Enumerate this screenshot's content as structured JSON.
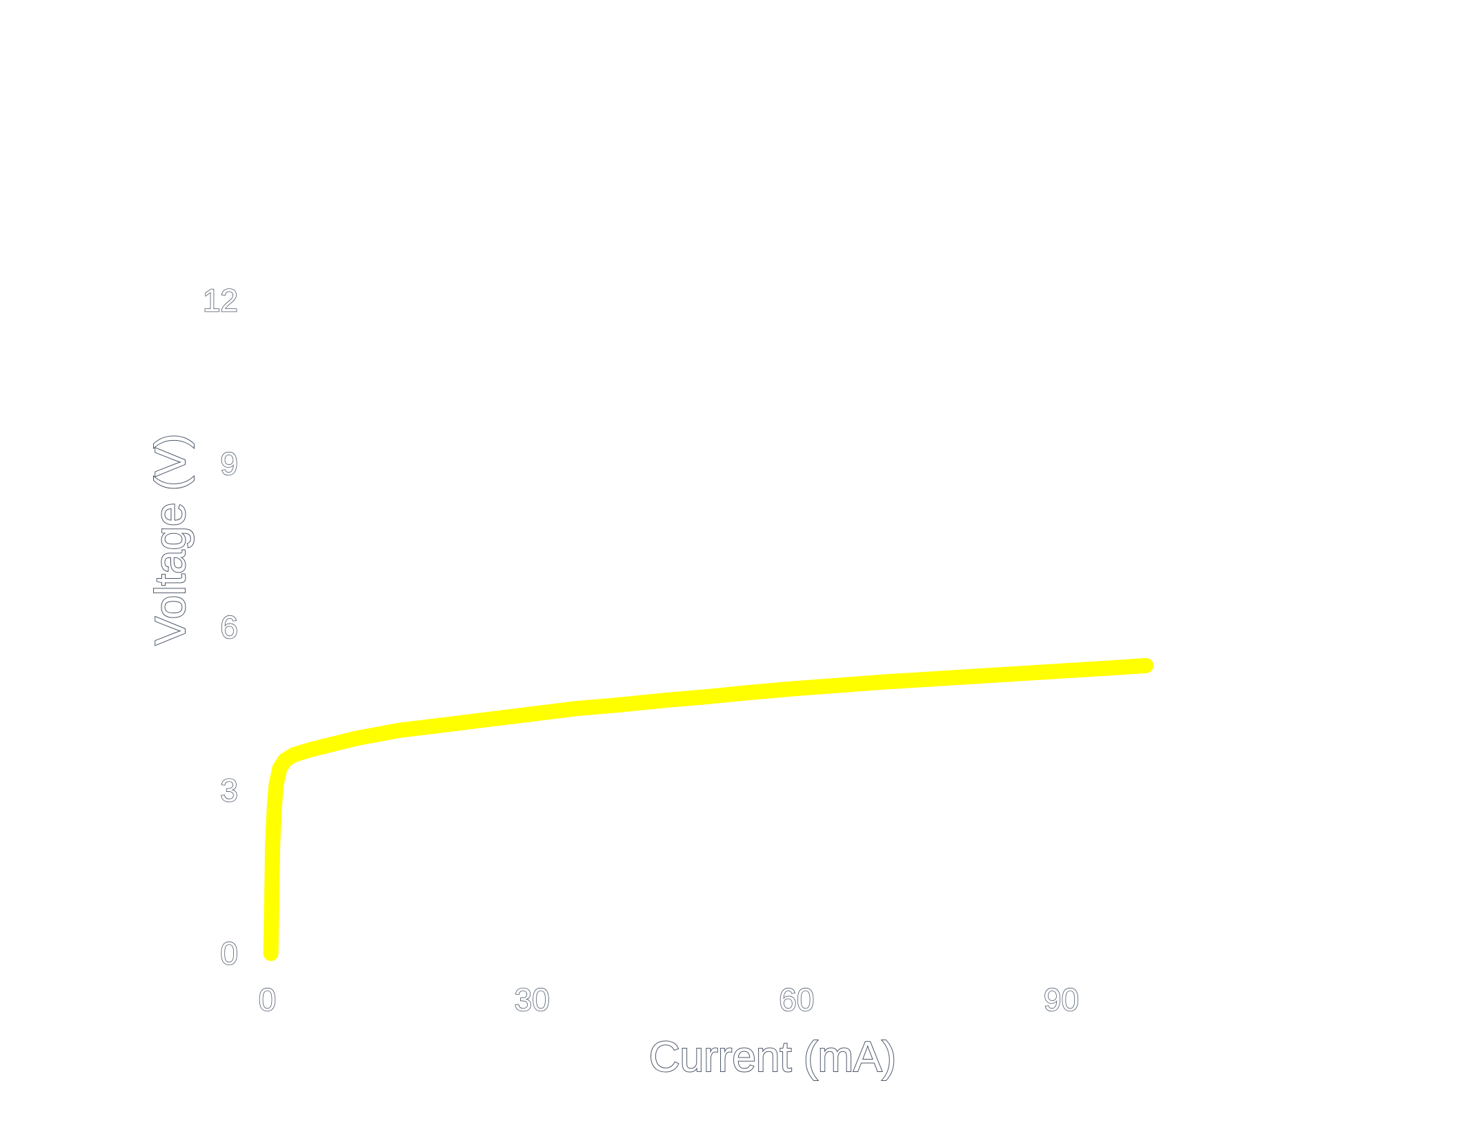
{
  "chart_data": {
    "type": "line",
    "title": "",
    "xlabel": "Current (mA)",
    "ylabel": "Voltage (V)",
    "xlim": [
      -2,
      130
    ],
    "ylim": [
      -0.2,
      13.4
    ],
    "x_ticks": [
      0,
      30,
      60,
      90
    ],
    "y_ticks": [
      0,
      3,
      6,
      9,
      12
    ],
    "grid": false,
    "legend": "none",
    "series": [
      {
        "color": "#ffff00",
        "points": [
          [
            0.4,
            0.0
          ],
          [
            0.5,
            1.0
          ],
          [
            0.6,
            2.0
          ],
          [
            0.8,
            2.7
          ],
          [
            1.0,
            3.1
          ],
          [
            1.4,
            3.4
          ],
          [
            2.0,
            3.55
          ],
          [
            3.0,
            3.65
          ],
          [
            5.0,
            3.75
          ],
          [
            10.0,
            3.95
          ],
          [
            15.0,
            4.1
          ],
          [
            20.0,
            4.2
          ],
          [
            25.0,
            4.3
          ],
          [
            30.0,
            4.4
          ],
          [
            35.0,
            4.5
          ],
          [
            40.0,
            4.57
          ],
          [
            45.0,
            4.65
          ],
          [
            50.0,
            4.72
          ],
          [
            55.0,
            4.8
          ],
          [
            60.0,
            4.87
          ],
          [
            65.0,
            4.93
          ],
          [
            70.0,
            4.99
          ],
          [
            75.0,
            5.04
          ],
          [
            80.0,
            5.09
          ],
          [
            85.0,
            5.14
          ],
          [
            90.0,
            5.19
          ],
          [
            95.0,
            5.24
          ],
          [
            99.6,
            5.29
          ]
        ]
      }
    ]
  }
}
